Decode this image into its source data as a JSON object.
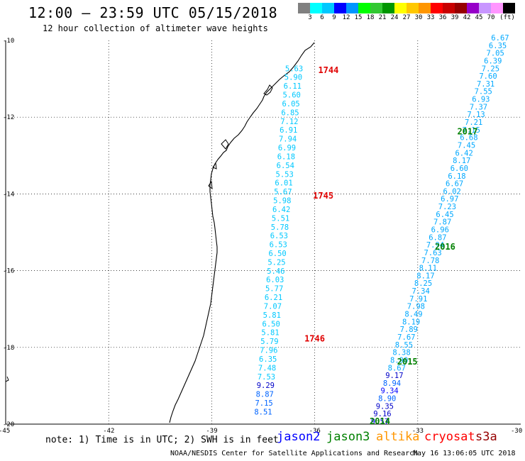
{
  "header": {
    "title": "12:00 – 23:59 UTC 05/15/2018",
    "subtitle": "12 hour collection of altimeter wave heights"
  },
  "color_scale": {
    "colors": [
      "#808080",
      "#00ffff",
      "#00c8ff",
      "#0000ff",
      "#0096ff",
      "#00ff00",
      "#32c832",
      "#009600",
      "#ffff00",
      "#ffc800",
      "#ff9600",
      "#ff0000",
      "#c80000",
      "#960000",
      "#9600c8",
      "#c896ff",
      "#ff96ff",
      "#000000"
    ],
    "labels": [
      "3",
      "6",
      "9",
      "12",
      "15",
      "18",
      "21",
      "24",
      "27",
      "30",
      "33",
      "36",
      "39",
      "42",
      "45",
      "70",
      "(ft)"
    ]
  },
  "map": {
    "lat_labels": [
      "-10",
      "-12",
      "-14",
      "-16",
      "-18",
      "-20"
    ],
    "lon_labels": [
      "-45",
      "-42",
      "-39",
      "-36",
      "-33",
      "-30"
    ],
    "times": [
      {
        "text": "1744",
        "lat": -10.85,
        "lon": -35.9
      },
      {
        "text": "1745",
        "lat": -14.12,
        "lon": -36.05
      },
      {
        "text": "1746",
        "lat": -17.85,
        "lon": -36.3
      }
    ],
    "dates": [
      {
        "text": "2017",
        "lat": -12.45,
        "lon": -31.85
      },
      {
        "text": "2016",
        "lat": -15.45,
        "lon": -32.5
      },
      {
        "text": "2015",
        "lat": -18.45,
        "lon": -33.6
      },
      {
        "text": "2014",
        "lat": -20.0,
        "lon": -34.4
      }
    ],
    "track_cryosat": {
      "color": "#00c8ff",
      "lat_start": -10.8,
      "lat_end": -19.75,
      "lon_start": -36.6,
      "lon_end": -37.5,
      "values": [
        "5.63",
        "5.90",
        "6.11",
        "5.60",
        "6.05",
        "6.85",
        "7.12",
        "6.91",
        "7.94",
        "6.99",
        "6.18",
        "6.54",
        "5.53",
        "6.01",
        "5.67",
        "5.98",
        "6.42",
        "5.51",
        "5.78",
        "6.53",
        "6.53",
        "6.50",
        "5.25",
        "5.46",
        "6.03",
        "5.77",
        "6.21",
        "7.07",
        "5.81",
        "6.50",
        "5.81",
        "5.79",
        "7.96",
        "6.35",
        "7.48",
        "7.53",
        "9.29",
        "8.87",
        "7.15",
        "8.51"
      ],
      "color_overrides": {
        "36": "#0000c8",
        "37": "#0064ff",
        "38": "#0064ff",
        "39": "#0064ff"
      }
    },
    "track_jason3": {
      "color": "#00a8ff",
      "lat_start": -10.0,
      "lat_end": -20.0,
      "lon_start": -30.6,
      "lon_end": -34.1,
      "values": [
        "6.67",
        "6.35",
        "7.05",
        "6.39",
        "7.25",
        "7.60",
        "7.31",
        "7.55",
        "6.93",
        "7.37",
        "7.13",
        "7.21",
        "7.15",
        "6.68",
        "7.45",
        "6.42",
        "8.17",
        "6.60",
        "6.18",
        "6.67",
        "6.02",
        "6.97",
        "7.23",
        "6.45",
        "7.87",
        "6.96",
        "6.87",
        "7.94",
        "7.63",
        "7.78",
        "8.11",
        "8.17",
        "8.25",
        "7.34",
        "7.91",
        "7.98",
        "8.49",
        "8.19",
        "7.89",
        "7.67",
        "8.55",
        "8.38",
        "8.90",
        "8.67",
        "9.17",
        "8.94",
        "9.34",
        "8.90",
        "9.35",
        "9.16",
        "9.57"
      ],
      "color_overrides": {
        "44": "#0000c8",
        "45": "#0064ff",
        "46": "#0000ff",
        "47": "#0064ff",
        "48": "#0000c8",
        "49": "#0000c8",
        "50": "#0000ff"
      }
    }
  },
  "footer": {
    "note": "note:  1) Time is in UTC;  2) SWH is in feet",
    "satellites": [
      {
        "name": "jason2",
        "color": "#0000ff"
      },
      {
        "name": "jason3",
        "color": "#008000"
      },
      {
        "name": "altika",
        "color": "#ff9600"
      },
      {
        "name": "cryosat",
        "color": "#ff0000"
      },
      {
        "name": "s3a",
        "color": "#960000"
      }
    ],
    "credit": "NOAA/NESDIS Center for Satellite Applications and Research",
    "stamp": "May 16 13:06:05 UTC 2018"
  }
}
